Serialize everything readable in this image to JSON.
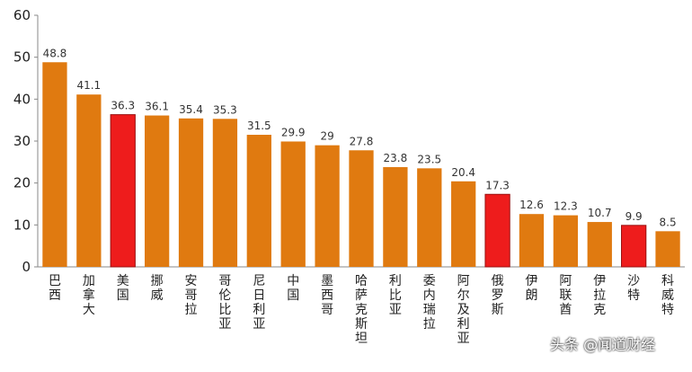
{
  "chart_data": {
    "type": "bar",
    "title": "",
    "xlabel": "",
    "ylabel": "",
    "ylim": [
      0,
      60
    ],
    "yticks": [
      0,
      10,
      20,
      30,
      40,
      50,
      60
    ],
    "grid": false,
    "legend": "none",
    "categories": [
      "巴西",
      "加拿大",
      "美国",
      "挪威",
      "安哥拉",
      "哥伦比亚",
      "尼日利亚",
      "中国",
      "墨西哥",
      "哈萨克斯坦",
      "利比亚",
      "委内瑞拉",
      "阿尔及利亚",
      "俄罗斯",
      "伊朗",
      "阿联酋",
      "伊拉克",
      "沙特",
      "科威特"
    ],
    "values": [
      48.8,
      41.1,
      36.3,
      36.1,
      35.4,
      35.3,
      31.5,
      29.9,
      29,
      27.8,
      23.8,
      23.5,
      20.4,
      17.3,
      12.6,
      12.3,
      10.7,
      9.9,
      8.5
    ],
    "value_labels": [
      "48.8",
      "41.1",
      "36.3",
      "36.1",
      "35.4",
      "35.3",
      "31.5",
      "29.9",
      "29",
      "27.8",
      "23.8",
      "23.5",
      "20.4",
      "17.3",
      "12.6",
      "12.3",
      "10.7",
      "9.9",
      "8.5"
    ],
    "highlighted": [
      "美国",
      "俄罗斯",
      "沙特"
    ],
    "colors": {
      "bar": "#e07a10",
      "highlight": "#ee1c1c",
      "axis": "#888888"
    }
  },
  "watermark": "头条 @闻道财经"
}
